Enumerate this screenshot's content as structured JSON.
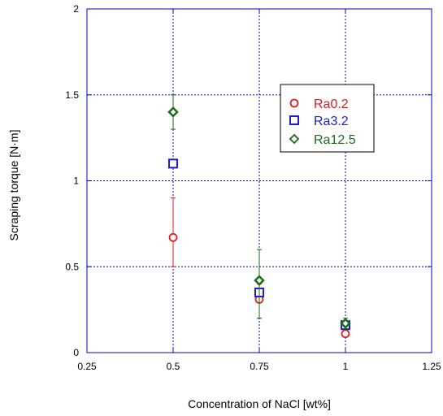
{
  "chart_data": {
    "type": "scatter",
    "title": "",
    "xlabel": "Concentration of NaCl [wt%]",
    "ylabel": "Scraping torque [N·m]",
    "xlim": [
      0.25,
      1.25
    ],
    "ylim": [
      0,
      2
    ],
    "x_ticks": [
      0.25,
      0.5,
      0.75,
      1,
      1.25
    ],
    "y_ticks": [
      0,
      0.5,
      1,
      1.5,
      2
    ],
    "x_tick_labels": [
      "0.25",
      "0.5",
      "0.75",
      "1",
      "1.25"
    ],
    "y_tick_labels": [
      "0",
      "0.5",
      "1",
      "1.5",
      "2"
    ],
    "grid": true,
    "legend_position": "top-right",
    "series": [
      {
        "name": "Ra0.2",
        "marker": "circle",
        "color": "#e31a1c",
        "x": [
          0.5,
          0.75,
          1
        ],
        "y": [
          0.67,
          0.31,
          0.11
        ],
        "err_low": [
          0.17,
          0.11,
          0.0
        ],
        "err_high": [
          0.23,
          0.09,
          0.0
        ]
      },
      {
        "name": "Ra3.2",
        "marker": "square",
        "color": "#1f1fd1",
        "x": [
          0.5,
          0.75,
          1
        ],
        "y": [
          1.1,
          0.35,
          0.16
        ],
        "err_low": [
          0.0,
          0.0,
          0.0
        ],
        "err_high": [
          0.0,
          0.0,
          0.0
        ]
      },
      {
        "name": "Ra12.5",
        "marker": "diamond",
        "color": "#1a6b1a",
        "x": [
          0.5,
          0.75,
          1
        ],
        "y": [
          1.4,
          0.42,
          0.17
        ],
        "err_low": [
          0.1,
          0.22,
          0.03
        ],
        "err_high": [
          0.1,
          0.18,
          0.03
        ]
      }
    ]
  }
}
